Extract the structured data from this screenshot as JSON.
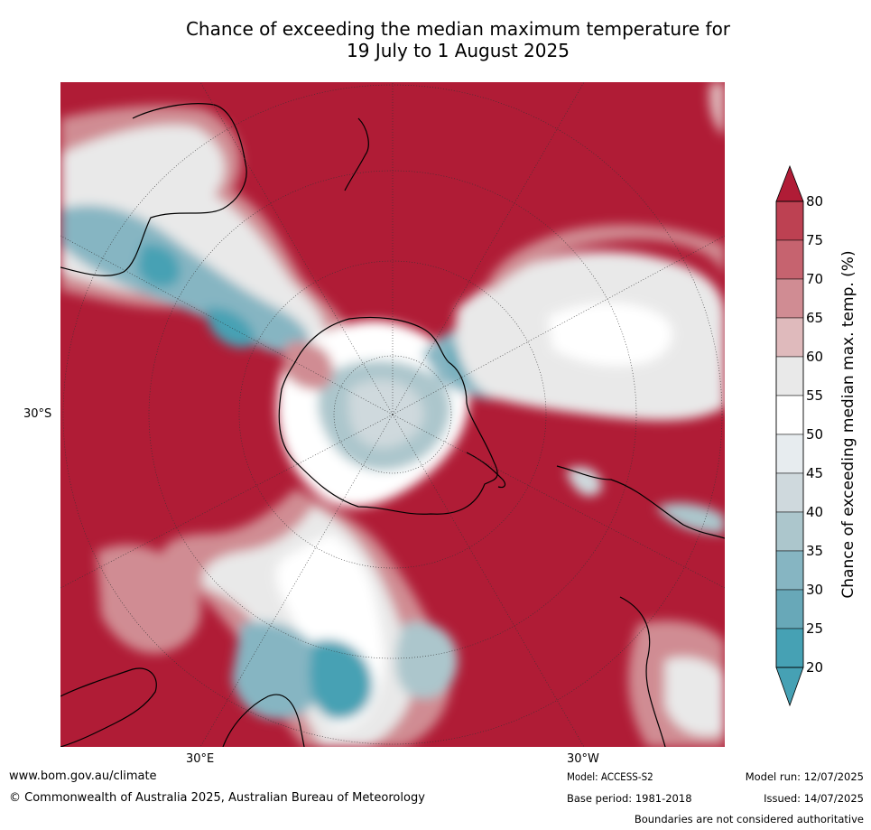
{
  "title_line1": "Chance of exceeding the median maximum temperature for",
  "title_line2": "19 July to 1 August 2025",
  "lat_label": "30°S",
  "lon_labels": {
    "east": "30°E",
    "west": "30°W"
  },
  "colorbar": {
    "label": "Chance of exceeding median max. temp. (%)",
    "ticks": [
      "80",
      "75",
      "70",
      "65",
      "60",
      "55",
      "50",
      "45",
      "40",
      "35",
      "30",
      "25",
      "20"
    ],
    "colors": [
      "#b01c36",
      "#bd4152",
      "#c6636f",
      "#d08c93",
      "#dfbabc",
      "#e9e9e9",
      "#ffffff",
      "#e7ecef",
      "#cfd9dd",
      "#acc6cc",
      "#86b5c2",
      "#68a8b8",
      "#46a1b4"
    ]
  },
  "footer": {
    "url": "www.bom.gov.au/climate",
    "copyright": "© Commonwealth of Australia 2025, Australian Bureau of Meteorology",
    "model": "Model: ACCESS-S2",
    "base_period": "Base period: 1981-2018",
    "model_run": "Model run: 12/07/2025",
    "issued": "Issued: 14/07/2025",
    "boundaries": "Boundaries are not considered authoritative"
  }
}
